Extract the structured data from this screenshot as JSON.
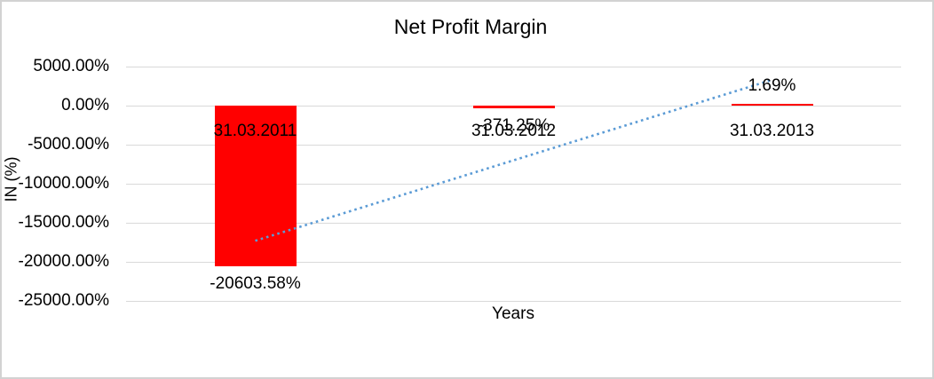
{
  "chart_data": {
    "type": "bar",
    "title": "Net Profit Margin",
    "xlabel": "Years",
    "ylabel": "IN (%)",
    "categories": [
      "31.03.2011",
      "31.03.2012",
      "31.03.2013"
    ],
    "values": [
      -20603.58,
      -371.25,
      1.69
    ],
    "data_labels": [
      "-20603.58%",
      "-371.25%",
      "1.69%"
    ],
    "yticks": [
      {
        "value": 5000,
        "label": "5000.00%"
      },
      {
        "value": 0,
        "label": "0.00%"
      },
      {
        "value": -5000,
        "label": "-5000.00%"
      },
      {
        "value": -10000,
        "label": "-10000.00%"
      },
      {
        "value": -15000,
        "label": "-15000.00%"
      },
      {
        "value": -20000,
        "label": "-20000.00%"
      },
      {
        "value": -25000,
        "label": "-25000.00%"
      }
    ],
    "ylim": [
      -25000,
      5000
    ],
    "grid": true,
    "legend": "none",
    "colors": {
      "bar": "#ff0000",
      "trendline": "#5b9bd5",
      "gridline": "#d9d9d9",
      "text": "#000000",
      "frame_border": "#d2d2d2"
    },
    "trendline": {
      "type": "linear",
      "style": "dotted",
      "color": "#5b9bd5",
      "from": {
        "category_index": 0,
        "value": -17300
      },
      "to": {
        "category_index": 2,
        "value": 3300
      }
    }
  }
}
